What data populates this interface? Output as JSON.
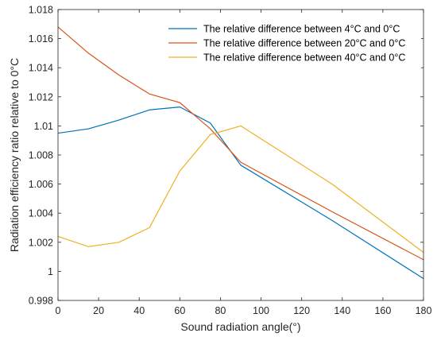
{
  "chart_data": {
    "type": "line",
    "xlabel": "Sound radiation angle(°)",
    "ylabel": "Radiation efficiency ratio relative to 0°C",
    "xlim": [
      0,
      180
    ],
    "ylim": [
      0.998,
      1.018
    ],
    "xticks": [
      0,
      20,
      40,
      60,
      80,
      100,
      120,
      140,
      160,
      180
    ],
    "xtick_labels": [
      "0",
      "20",
      "40",
      "60",
      "80",
      "100",
      "120",
      "140",
      "160",
      "180"
    ],
    "yticks": [
      0.998,
      1.0,
      1.002,
      1.004,
      1.006,
      1.008,
      1.01,
      1.012,
      1.014,
      1.016,
      1.018
    ],
    "ytick_labels": [
      "0.998",
      "1",
      "1.002",
      "1.004",
      "1.006",
      "1.008",
      "1.01",
      "1.012",
      "1.014",
      "1.016",
      "1.018"
    ],
    "grid": false,
    "legend_position": "top-right",
    "series": [
      {
        "name": "The relative difference between 4°C and 0°C",
        "color": "#0072BD",
        "x": [
          0,
          15,
          30,
          45,
          60,
          75,
          90,
          135,
          180
        ],
        "y": [
          1.0095,
          1.0098,
          1.0104,
          1.0111,
          1.0113,
          1.0102,
          1.0073,
          1.0035,
          0.9995
        ]
      },
      {
        "name": "The relative difference between 20°C and 0°C",
        "color": "#D95319",
        "x": [
          0,
          15,
          30,
          45,
          60,
          75,
          90,
          135,
          180
        ],
        "y": [
          1.0168,
          1.015,
          1.0135,
          1.0122,
          1.0116,
          1.0098,
          1.0075,
          1.0041,
          1.0008
        ]
      },
      {
        "name": "The relative difference between 40°C and 0°C",
        "color": "#EDB120",
        "x": [
          0,
          15,
          30,
          45,
          60,
          75,
          90,
          135,
          180
        ],
        "y": [
          1.0024,
          1.0017,
          1.002,
          1.003,
          1.0069,
          1.0094,
          1.01,
          1.006,
          1.0013
        ]
      }
    ]
  }
}
